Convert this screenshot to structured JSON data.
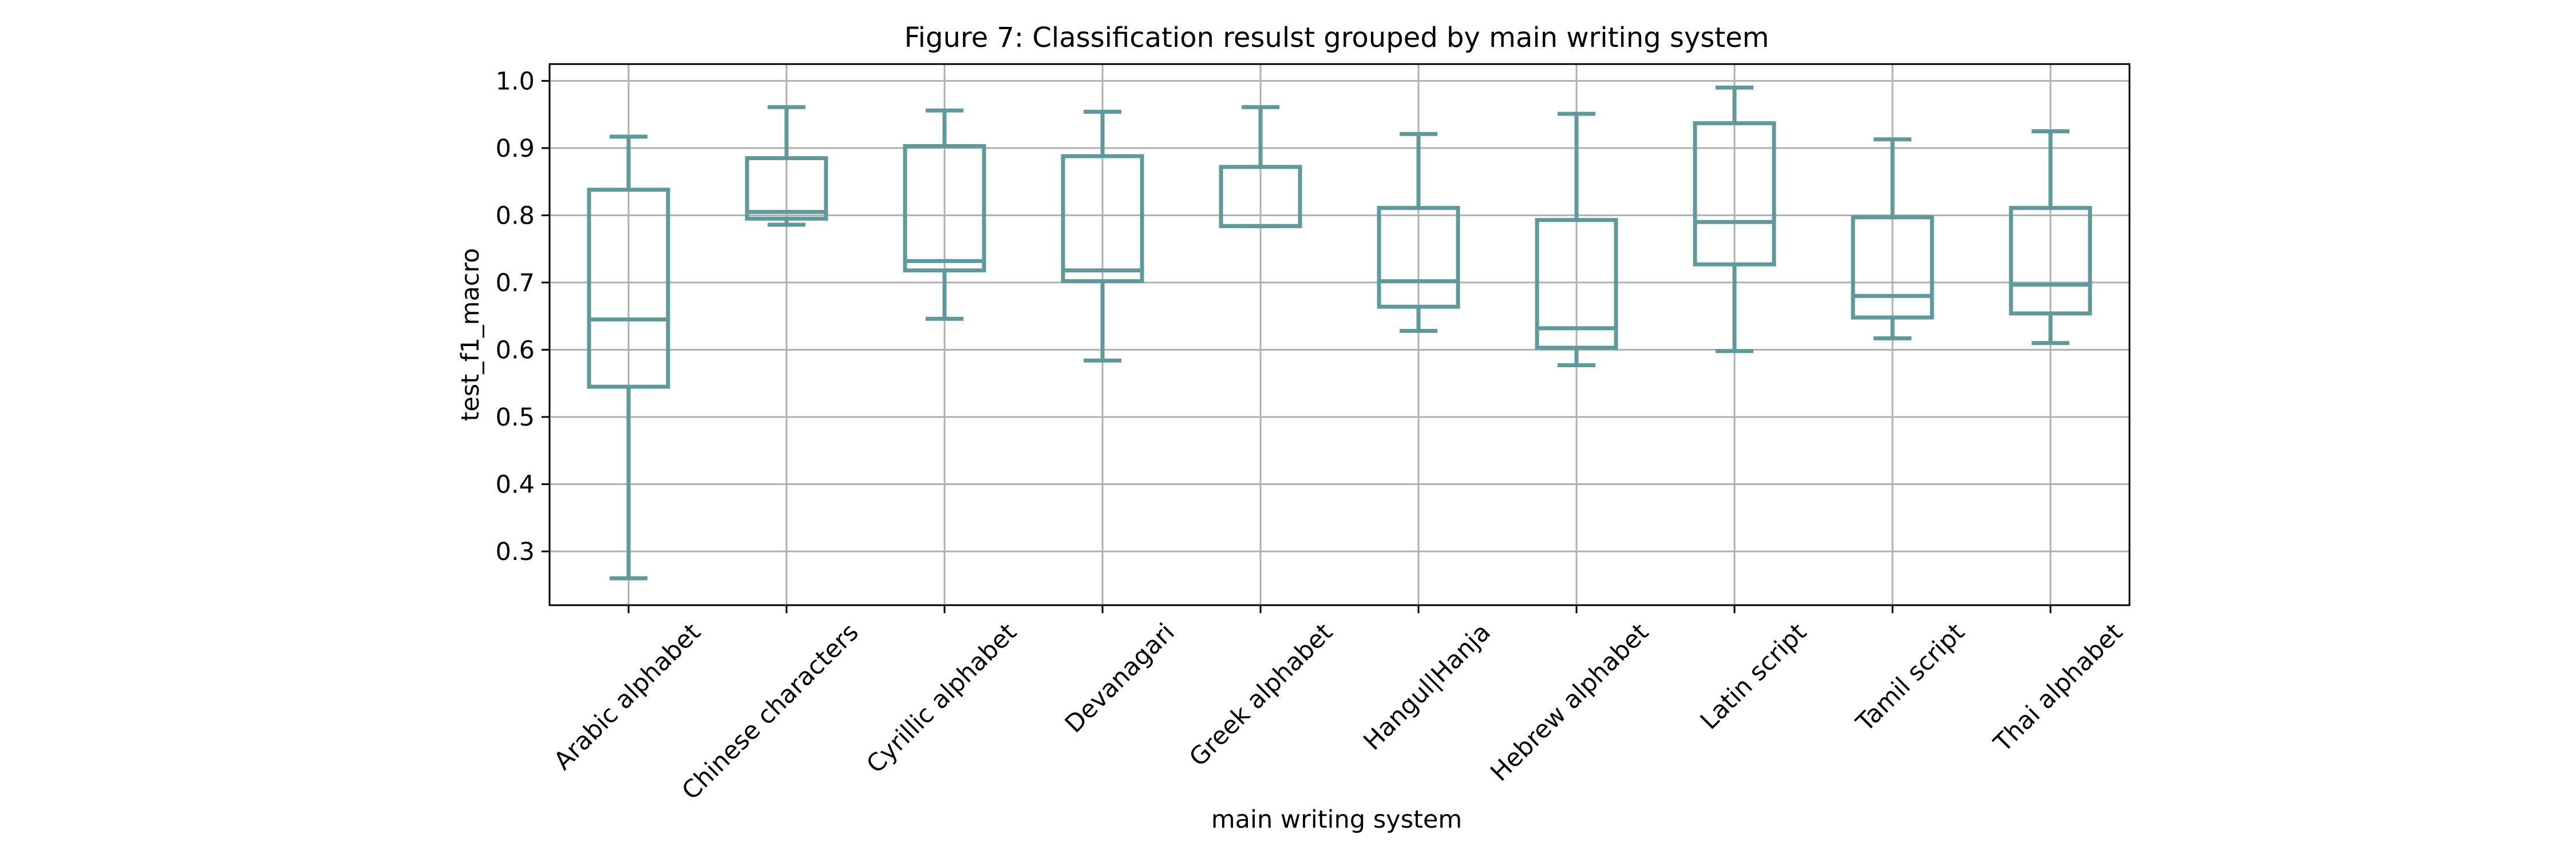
{
  "chart_data": {
    "type": "box",
    "title": "Figure 7: Classification resulst grouped by main writing system",
    "xlabel": "main writing system",
    "ylabel": "test_f1_macro",
    "ylim": [
      0.22,
      1.025
    ],
    "yticks": [
      "0.3",
      "0.4",
      "0.5",
      "0.6",
      "0.7",
      "0.8",
      "0.9",
      "1.0"
    ],
    "grid": true,
    "legend": "none",
    "color": "#5f9999",
    "categories": [
      "Arabic alphabet",
      "Chinese characters",
      "Cyrillic alphabet",
      "Devanagari",
      "Greek alphabet",
      "Hangul|Hanja",
      "Hebrew alphabet",
      "Latin script",
      "Tamil script",
      "Thai alphabet"
    ],
    "boxes": [
      {
        "whislo": 0.26,
        "q1": 0.545,
        "med": 0.645,
        "q3": 0.838,
        "whishi": 0.917
      },
      {
        "whislo": 0.786,
        "q1": 0.795,
        "med": 0.805,
        "q3": 0.885,
        "whishi": 0.961
      },
      {
        "whislo": 0.646,
        "q1": 0.718,
        "med": 0.732,
        "q3": 0.903,
        "whishi": 0.956
      },
      {
        "whislo": 0.584,
        "q1": 0.702,
        "med": 0.718,
        "q3": 0.888,
        "whishi": 0.954
      },
      {
        "whislo": 0.784,
        "q1": 0.784,
        "med": 0.784,
        "q3": 0.872,
        "whishi": 0.961
      },
      {
        "whislo": 0.628,
        "q1": 0.664,
        "med": 0.702,
        "q3": 0.811,
        "whishi": 0.921
      },
      {
        "whislo": 0.577,
        "q1": 0.603,
        "med": 0.632,
        "q3": 0.793,
        "whishi": 0.951
      },
      {
        "whislo": 0.598,
        "q1": 0.727,
        "med": 0.79,
        "q3": 0.937,
        "whishi": 0.99
      },
      {
        "whislo": 0.617,
        "q1": 0.648,
        "med": 0.68,
        "q3": 0.797,
        "whishi": 0.913
      },
      {
        "whislo": 0.61,
        "q1": 0.654,
        "med": 0.697,
        "q3": 0.811,
        "whishi": 0.925
      }
    ]
  }
}
